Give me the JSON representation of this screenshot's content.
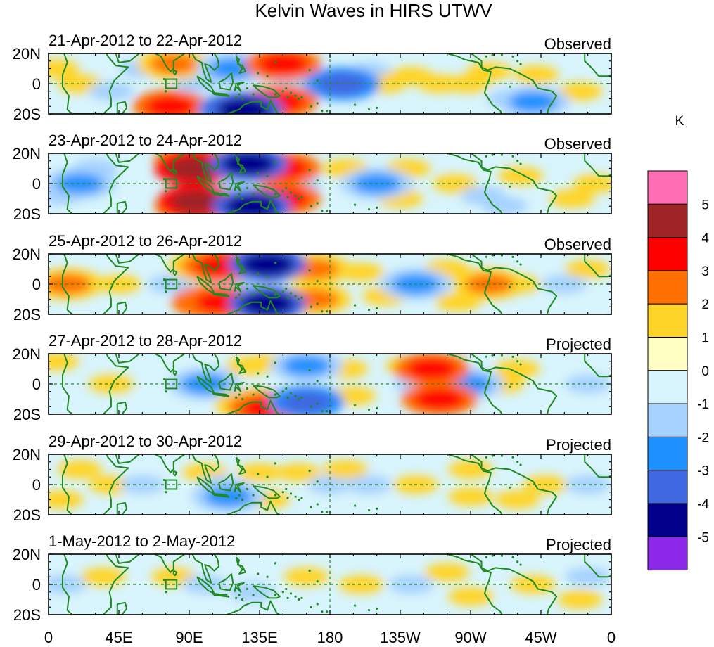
{
  "chart_data": {
    "type": "heatmap",
    "title": "Kelvin Waves in HIRS UTWV",
    "xlim": [
      0,
      360
    ],
    "ylim": [
      -20,
      20
    ],
    "x_ticks": [
      {
        "label": "0",
        "lon": 0
      },
      {
        "label": "45E",
        "lon": 45
      },
      {
        "label": "90E",
        "lon": 90
      },
      {
        "label": "135E",
        "lon": 135
      },
      {
        "label": "180",
        "lon": 180
      },
      {
        "label": "135W",
        "lon": 225
      },
      {
        "label": "90W",
        "lon": 270
      },
      {
        "label": "45W",
        "lon": 315
      },
      {
        "label": "0",
        "lon": 360
      }
    ],
    "y_ticks": [
      {
        "label": "20N",
        "lat": 20
      },
      {
        "label": "0",
        "lat": 0
      },
      {
        "label": "20S",
        "lat": -20
      }
    ],
    "panels": [
      {
        "date": "21-Apr-2012 to 22-Apr-2012",
        "label": "Observed",
        "anomalies": [
          {
            "lon": 80,
            "lat": 13,
            "value": 2
          },
          {
            "lon": 78,
            "lat": -15,
            "value": 3
          },
          {
            "lon": 95,
            "lat": 0,
            "value": -1
          },
          {
            "lon": 110,
            "lat": 5,
            "value": -1
          },
          {
            "lon": 118,
            "lat": 10,
            "value": -2
          },
          {
            "lon": 120,
            "lat": -17,
            "value": -3
          },
          {
            "lon": 125,
            "lat": -17,
            "value": -4
          },
          {
            "lon": 150,
            "lat": 13,
            "value": 3
          },
          {
            "lon": 148,
            "lat": -12,
            "value": 3
          },
          {
            "lon": 158,
            "lat": 0,
            "value": -1
          },
          {
            "lon": 172,
            "lat": 0,
            "value": -1
          },
          {
            "lon": 188,
            "lat": 0,
            "value": -3
          },
          {
            "lon": 205,
            "lat": 8,
            "value": -1
          },
          {
            "lon": 215,
            "lat": 0,
            "value": 1
          },
          {
            "lon": 232,
            "lat": 5,
            "value": 1
          },
          {
            "lon": 250,
            "lat": 0,
            "value": 1
          },
          {
            "lon": 268,
            "lat": 0,
            "value": 1
          },
          {
            "lon": 282,
            "lat": 8,
            "value": 1
          },
          {
            "lon": 295,
            "lat": -10,
            "value": -1
          },
          {
            "lon": 310,
            "lat": -12,
            "value": -2
          },
          {
            "lon": 312,
            "lat": 6,
            "value": 1
          },
          {
            "lon": 340,
            "lat": -5,
            "value": 1
          },
          {
            "lon": 20,
            "lat": 0,
            "value": 1
          },
          {
            "lon": 5,
            "lat": 10,
            "value": 1
          },
          {
            "lon": 40,
            "lat": -5,
            "value": -1
          },
          {
            "lon": 60,
            "lat": 10,
            "value": -1
          }
        ]
      },
      {
        "date": "23-Apr-2012 to 24-Apr-2012",
        "label": "Observed",
        "anomalies": [
          {
            "lon": 20,
            "lat": 0,
            "value": -2
          },
          {
            "lon": 30,
            "lat": 10,
            "value": -1
          },
          {
            "lon": 8,
            "lat": -8,
            "value": -1
          },
          {
            "lon": 92,
            "lat": 15,
            "value": 3
          },
          {
            "lon": 93,
            "lat": 10,
            "value": 4
          },
          {
            "lon": 92,
            "lat": -15,
            "value": 3
          },
          {
            "lon": 95,
            "lat": -12,
            "value": 4
          },
          {
            "lon": 110,
            "lat": 15,
            "value": 2
          },
          {
            "lon": 125,
            "lat": 15,
            "value": -2
          },
          {
            "lon": 128,
            "lat": 13,
            "value": -4
          },
          {
            "lon": 115,
            "lat": 0,
            "value": -1
          },
          {
            "lon": 128,
            "lat": -13,
            "value": -2
          },
          {
            "lon": 130,
            "lat": -15,
            "value": -4
          },
          {
            "lon": 150,
            "lat": 10,
            "value": 3
          },
          {
            "lon": 150,
            "lat": -10,
            "value": 3
          },
          {
            "lon": 160,
            "lat": 0,
            "value": -1
          },
          {
            "lon": 200,
            "lat": 0,
            "value": -1
          },
          {
            "lon": 210,
            "lat": 0,
            "value": -2
          },
          {
            "lon": 190,
            "lat": 10,
            "value": 1
          },
          {
            "lon": 230,
            "lat": 10,
            "value": 1
          },
          {
            "lon": 225,
            "lat": -10,
            "value": 1
          },
          {
            "lon": 260,
            "lat": 0,
            "value": 1
          },
          {
            "lon": 278,
            "lat": -8,
            "value": -1
          },
          {
            "lon": 292,
            "lat": -15,
            "value": -1
          },
          {
            "lon": 302,
            "lat": 5,
            "value": 1
          },
          {
            "lon": 350,
            "lat": 0,
            "value": 1
          },
          {
            "lon": 335,
            "lat": -10,
            "value": 1
          }
        ]
      },
      {
        "date": "25-Apr-2012 to 26-Apr-2012",
        "label": "Observed",
        "anomalies": [
          {
            "lon": 12,
            "lat": 0,
            "value": 2
          },
          {
            "lon": 20,
            "lat": 0,
            "value": 1
          },
          {
            "lon": 45,
            "lat": 0,
            "value": 1
          },
          {
            "lon": 78,
            "lat": 0,
            "value": -1
          },
          {
            "lon": 100,
            "lat": 12,
            "value": 2
          },
          {
            "lon": 110,
            "lat": 12,
            "value": 3
          },
          {
            "lon": 103,
            "lat": -12,
            "value": 3
          },
          {
            "lon": 110,
            "lat": -12,
            "value": 3
          },
          {
            "lon": 132,
            "lat": 12,
            "value": -2
          },
          {
            "lon": 140,
            "lat": 13,
            "value": -4
          },
          {
            "lon": 140,
            "lat": -13,
            "value": -4
          },
          {
            "lon": 120,
            "lat": 0,
            "value": -1
          },
          {
            "lon": 170,
            "lat": 10,
            "value": 2
          },
          {
            "lon": 170,
            "lat": -10,
            "value": 2
          },
          {
            "lon": 200,
            "lat": 8,
            "value": 1
          },
          {
            "lon": 215,
            "lat": -8,
            "value": 1
          },
          {
            "lon": 235,
            "lat": 0,
            "value": -2
          },
          {
            "lon": 255,
            "lat": 10,
            "value": 1
          },
          {
            "lon": 262,
            "lat": -12,
            "value": 1
          },
          {
            "lon": 282,
            "lat": 0,
            "value": 2
          },
          {
            "lon": 300,
            "lat": 0,
            "value": 1
          },
          {
            "lon": 330,
            "lat": 0,
            "value": -1
          },
          {
            "lon": 345,
            "lat": 10,
            "value": 1
          }
        ]
      },
      {
        "date": "27-Apr-2012 to 28-Apr-2012",
        "label": "Projected",
        "anomalies": [
          {
            "lon": 40,
            "lat": 0,
            "value": 1
          },
          {
            "lon": 5,
            "lat": 15,
            "value": 1
          },
          {
            "lon": 100,
            "lat": 0,
            "value": -2
          },
          {
            "lon": 105,
            "lat": 5,
            "value": -1
          },
          {
            "lon": 128,
            "lat": 12,
            "value": 1
          },
          {
            "lon": 130,
            "lat": -14,
            "value": 2
          },
          {
            "lon": 140,
            "lat": -16,
            "value": 3
          },
          {
            "lon": 140,
            "lat": 14,
            "value": 1
          },
          {
            "lon": 160,
            "lat": 10,
            "value": -1
          },
          {
            "lon": 165,
            "lat": 12,
            "value": -2
          },
          {
            "lon": 165,
            "lat": -12,
            "value": -3
          },
          {
            "lon": 190,
            "lat": 10,
            "value": 1
          },
          {
            "lon": 195,
            "lat": -8,
            "value": 1
          },
          {
            "lon": 230,
            "lat": 12,
            "value": 1
          },
          {
            "lon": 235,
            "lat": 0,
            "value": -1
          },
          {
            "lon": 245,
            "lat": 10,
            "value": 3
          },
          {
            "lon": 250,
            "lat": -10,
            "value": 3
          },
          {
            "lon": 268,
            "lat": 0,
            "value": -2
          },
          {
            "lon": 290,
            "lat": 0,
            "value": 1
          },
          {
            "lon": 300,
            "lat": 10,
            "value": 1
          },
          {
            "lon": 345,
            "lat": 0,
            "value": -1
          }
        ]
      },
      {
        "date": "29-Apr-2012 to 30-Apr-2012",
        "label": "Projected",
        "anomalies": [
          {
            "lon": 20,
            "lat": 10,
            "value": 1
          },
          {
            "lon": 40,
            "lat": 0,
            "value": 1
          },
          {
            "lon": 8,
            "lat": -10,
            "value": 1
          },
          {
            "lon": 60,
            "lat": 0,
            "value": -1
          },
          {
            "lon": 100,
            "lat": 8,
            "value": 1
          },
          {
            "lon": 110,
            "lat": 0,
            "value": -1
          },
          {
            "lon": 115,
            "lat": -8,
            "value": -2
          },
          {
            "lon": 135,
            "lat": 8,
            "value": 1
          },
          {
            "lon": 140,
            "lat": -10,
            "value": 1
          },
          {
            "lon": 160,
            "lat": 8,
            "value": 1
          },
          {
            "lon": 180,
            "lat": 0,
            "value": -1
          },
          {
            "lon": 190,
            "lat": 10,
            "value": 1
          },
          {
            "lon": 205,
            "lat": 0,
            "value": -1
          },
          {
            "lon": 235,
            "lat": 0,
            "value": 1
          },
          {
            "lon": 270,
            "lat": 10,
            "value": 1
          },
          {
            "lon": 270,
            "lat": -8,
            "value": 1
          },
          {
            "lon": 300,
            "lat": -10,
            "value": 1
          },
          {
            "lon": 318,
            "lat": 0,
            "value": 1
          },
          {
            "lon": 345,
            "lat": 0,
            "value": -1
          }
        ]
      },
      {
        "date": "1-May-2012 to 2-May-2012",
        "label": "Projected",
        "anomalies": [
          {
            "lon": 10,
            "lat": 0,
            "value": -1
          },
          {
            "lon": 35,
            "lat": 5,
            "value": 1
          },
          {
            "lon": 80,
            "lat": 5,
            "value": 1
          },
          {
            "lon": 100,
            "lat": 0,
            "value": -1
          },
          {
            "lon": 130,
            "lat": -5,
            "value": -1
          },
          {
            "lon": 165,
            "lat": 5,
            "value": 1
          },
          {
            "lon": 200,
            "lat": 0,
            "value": 1
          },
          {
            "lon": 232,
            "lat": 0,
            "value": -1
          },
          {
            "lon": 255,
            "lat": 8,
            "value": 1
          },
          {
            "lon": 270,
            "lat": -8,
            "value": 1
          },
          {
            "lon": 310,
            "lat": 0,
            "value": 1
          },
          {
            "lon": 345,
            "lat": 5,
            "value": -1
          },
          {
            "lon": 340,
            "lat": -10,
            "value": 1
          }
        ]
      }
    ],
    "colorbar": {
      "unit": "K",
      "labels": [
        "5",
        "4",
        "3",
        "2",
        "1",
        "0",
        "-1",
        "-2",
        "-3",
        "-4",
        "-5"
      ],
      "colors": [
        "#ff6eb4",
        "#9e2426",
        "#ff0000",
        "#ff7000",
        "#ffd428",
        "#ffffc4",
        "#d8f4fc",
        "#a6d2ff",
        "#1e90ff",
        "#4068e0",
        "#00008b",
        "#8c28e8"
      ]
    }
  }
}
